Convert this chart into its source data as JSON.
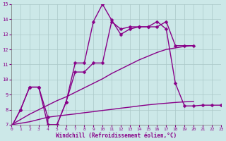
{
  "xlabel": "Windchill (Refroidissement éolien,°C)",
  "background_color": "#cce8e8",
  "grid_color": "#aac8c8",
  "line_color": "#880088",
  "xlim": [
    0,
    23
  ],
  "ylim": [
    7,
    15
  ],
  "yticks": [
    7,
    8,
    9,
    10,
    11,
    12,
    13,
    14,
    15
  ],
  "xticks": [
    0,
    1,
    2,
    3,
    4,
    5,
    6,
    7,
    8,
    9,
    10,
    11,
    12,
    13,
    14,
    15,
    16,
    17,
    18,
    19,
    20,
    21,
    22,
    23
  ],
  "line1_x": [
    0,
    1,
    2,
    3,
    4,
    4,
    5,
    6,
    7,
    8,
    9,
    10,
    11,
    12,
    13,
    14,
    15,
    16,
    17,
    18,
    19,
    20,
    21,
    22,
    23
  ],
  "line1_y": [
    6.85,
    8.0,
    9.5,
    9.5,
    7.5,
    7.0,
    7.0,
    8.5,
    10.5,
    10.5,
    11.1,
    11.1,
    13.85,
    13.35,
    13.5,
    13.5,
    13.5,
    13.85,
    13.35,
    9.75,
    8.25,
    8.25,
    8.3,
    8.3,
    8.3
  ],
  "line2_x": [
    0,
    1,
    2,
    3,
    4,
    5,
    6,
    7,
    8,
    9,
    10,
    11,
    12,
    13,
    14,
    15,
    16,
    17,
    18,
    19,
    20
  ],
  "line2_y": [
    6.85,
    8.0,
    9.5,
    9.5,
    7.0,
    7.0,
    8.5,
    11.1,
    11.1,
    13.85,
    15.0,
    13.95,
    13.0,
    13.35,
    13.5,
    13.5,
    13.5,
    13.85,
    12.25,
    12.25,
    12.25
  ],
  "line3_x": [
    0,
    1,
    2,
    3,
    4,
    5,
    6,
    7,
    8,
    9,
    10,
    11,
    12,
    13,
    14,
    15,
    16,
    17,
    18,
    19,
    20
  ],
  "line3_y": [
    7.0,
    7.35,
    7.7,
    8.0,
    8.3,
    8.6,
    8.85,
    9.15,
    9.45,
    9.75,
    10.05,
    10.4,
    10.7,
    11.0,
    11.3,
    11.55,
    11.8,
    12.0,
    12.1,
    12.2,
    12.25
  ],
  "line4_x": [
    0,
    1,
    2,
    3,
    4,
    5,
    6,
    7,
    8,
    9,
    10,
    11,
    12,
    13,
    14,
    15,
    16,
    17,
    18,
    19,
    20
  ],
  "line4_y": [
    7.0,
    7.1,
    7.2,
    7.35,
    7.5,
    7.58,
    7.65,
    7.72,
    7.8,
    7.87,
    7.95,
    8.02,
    8.1,
    8.17,
    8.25,
    8.32,
    8.38,
    8.43,
    8.48,
    8.52,
    8.55
  ],
  "marker": "D",
  "markersize": 2.5,
  "linewidth": 1.0
}
